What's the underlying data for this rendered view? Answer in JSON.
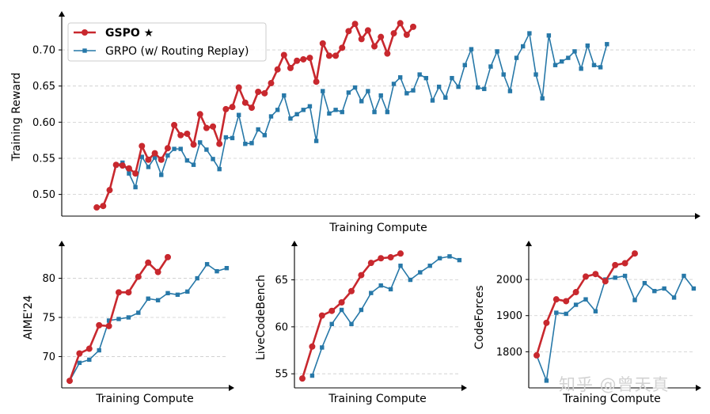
{
  "watermark": "知乎 @曾天真",
  "colors": {
    "gspo": "#c8282e",
    "grpo": "#2778a8",
    "grid": "#cccccc",
    "axis": "#000000"
  },
  "chart_data": [
    {
      "id": "reward",
      "type": "line",
      "title": "",
      "xlabel": "Training Compute",
      "ylabel": "Training Reward",
      "ylim": [
        0.47,
        0.745
      ],
      "yticks": [
        0.5,
        0.55,
        0.6,
        0.65,
        0.7
      ],
      "ytick_labels": [
        "0.50",
        "0.55",
        "0.60",
        "0.65",
        "0.70"
      ],
      "grid": "horizontal dashed",
      "legend": {
        "position": "top-left",
        "entries": [
          "GSPO ★",
          "GRPO (w/ Routing Replay)"
        ]
      },
      "series": [
        {
          "name": "GSPO ★",
          "x_start": 1,
          "marker": "circle",
          "values": [
            0.482,
            0.484,
            0.506,
            0.541,
            0.54,
            0.536,
            0.529,
            0.567,
            0.548,
            0.557,
            0.548,
            0.564,
            0.596,
            0.582,
            0.584,
            0.569,
            0.611,
            0.592,
            0.594,
            0.57,
            0.618,
            0.621,
            0.648,
            0.627,
            0.62,
            0.642,
            0.64,
            0.654,
            0.673,
            0.693,
            0.675,
            0.685,
            0.687,
            0.689,
            0.656,
            0.709,
            0.692,
            0.692,
            0.703,
            0.726,
            0.736,
            0.715,
            0.727,
            0.705,
            0.718,
            0.695,
            0.723,
            0.737,
            0.721,
            0.732
          ]
        },
        {
          "name": "GRPO (w/ Routing Replay)",
          "x_start": 4,
          "marker": "square",
          "values": [
            0.54,
            0.544,
            0.529,
            0.51,
            0.552,
            0.538,
            0.551,
            0.527,
            0.554,
            0.563,
            0.563,
            0.547,
            0.541,
            0.572,
            0.562,
            0.549,
            0.535,
            0.579,
            0.578,
            0.61,
            0.57,
            0.571,
            0.59,
            0.582,
            0.608,
            0.617,
            0.637,
            0.605,
            0.611,
            0.617,
            0.622,
            0.574,
            0.643,
            0.612,
            0.617,
            0.614,
            0.641,
            0.648,
            0.629,
            0.643,
            0.614,
            0.637,
            0.614,
            0.653,
            0.662,
            0.64,
            0.644,
            0.666,
            0.661,
            0.63,
            0.649,
            0.634,
            0.661,
            0.649,
            0.679,
            0.701,
            0.648,
            0.646,
            0.677,
            0.698,
            0.666,
            0.643,
            0.689,
            0.705,
            0.723,
            0.666,
            0.633,
            0.72,
            0.679,
            0.684,
            0.689,
            0.698,
            0.674,
            0.706,
            0.679,
            0.676,
            0.708
          ]
        }
      ]
    },
    {
      "id": "aime",
      "type": "line",
      "xlabel": "Training Compute",
      "ylabel": "AIME'24",
      "ylim": [
        66,
        84
      ],
      "yticks": [
        70,
        75,
        80
      ],
      "ytick_labels": [
        "70",
        "75",
        "80"
      ],
      "grid": "horizontal dashed",
      "series": [
        {
          "name": "GSPO ★",
          "x_start": 0,
          "marker": "circle",
          "values": [
            66.9,
            70.4,
            71.0,
            74.0,
            73.9,
            78.2,
            78.2,
            80.2,
            82.0,
            80.8,
            82.7
          ]
        },
        {
          "name": "GRPO (w/ Routing Replay)",
          "x_start": 0,
          "marker": "square",
          "values": [
            66.9,
            69.2,
            69.6,
            70.8,
            74.6,
            74.8,
            75.0,
            75.6,
            77.4,
            77.2,
            78.1,
            77.9,
            78.3,
            80.0,
            81.8,
            80.9,
            81.3
          ]
        }
      ]
    },
    {
      "id": "livecodebench",
      "type": "line",
      "xlabel": "Training Compute",
      "ylabel": "LiveCodeBench",
      "ylim": [
        53.5,
        68.5
      ],
      "yticks": [
        55,
        60,
        65
      ],
      "ytick_labels": [
        "55",
        "60",
        "65"
      ],
      "grid": "horizontal dashed",
      "series": [
        {
          "name": "GSPO ★",
          "x_start": 0,
          "marker": "circle",
          "values": [
            54.5,
            57.9,
            61.2,
            61.7,
            62.6,
            63.8,
            65.5,
            66.8,
            67.3,
            67.4,
            67.8
          ]
        },
        {
          "name": "GRPO (w/ Routing Replay)",
          "x_start": 1,
          "marker": "square",
          "values": [
            54.8,
            57.8,
            60.3,
            61.8,
            60.3,
            61.8,
            63.6,
            64.4,
            64.0,
            66.5,
            65.0,
            65.8,
            66.5,
            67.3,
            67.5,
            67.1
          ]
        }
      ]
    },
    {
      "id": "codeforces",
      "type": "line",
      "xlabel": "Training Compute",
      "ylabel": "CodeForces",
      "ylim": [
        1700,
        2090
      ],
      "yticks": [
        1800,
        1900,
        2000
      ],
      "ytick_labels": [
        "1800",
        "1900",
        "2000"
      ],
      "grid": "horizontal dashed",
      "series": [
        {
          "name": "GSPO ★",
          "x_start": 0,
          "marker": "circle",
          "values": [
            1790,
            1880,
            1945,
            1940,
            1965,
            2008,
            2015,
            1995,
            2040,
            2045,
            2072
          ]
        },
        {
          "name": "GRPO (w/ Routing Replay)",
          "x_start": 0,
          "marker": "square",
          "values": [
            1790,
            1720,
            1908,
            1905,
            1930,
            1945,
            1912,
            2000,
            2005,
            2010,
            1943,
            1990,
            1968,
            1975,
            1950,
            2010,
            1975
          ]
        }
      ]
    }
  ]
}
